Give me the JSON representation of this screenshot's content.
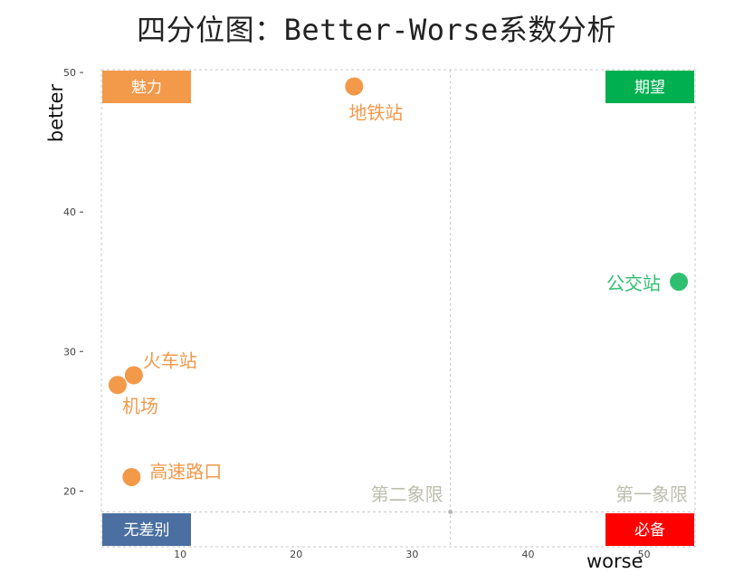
{
  "title": "四分位图：Better-Worse系数分析",
  "xlabel": "worse",
  "ylabel": "better",
  "chart_data": {
    "type": "scatter",
    "title": "四分位图：Better-Worse系数分析",
    "xlabel": "worse",
    "ylabel": "better",
    "xlim": [
      3.2,
      54.4
    ],
    "ylim": [
      16,
      50.2
    ],
    "xticks": [
      10,
      20,
      30,
      40,
      50
    ],
    "yticks": [
      20,
      30,
      40,
      50
    ],
    "grid": false,
    "points": [
      {
        "label": "地铁站",
        "x": 25,
        "y": 49,
        "color": "#F2994A"
      },
      {
        "label": "公交站",
        "x": 53,
        "y": 35,
        "color": "#2FBF71"
      },
      {
        "label": "火车站",
        "x": 6,
        "y": 28.3,
        "color": "#F2994A"
      },
      {
        "label": "机场",
        "x": 4.6,
        "y": 27.6,
        "color": "#F2994A"
      },
      {
        "label": "高速路口",
        "x": 5.8,
        "y": 21,
        "color": "#F2994A"
      }
    ],
    "reference_lines": {
      "x": 33.3,
      "y": 18.5
    },
    "quadrant_boxes": [
      {
        "label": "魅力",
        "position": "top-left",
        "color": "#F2994A"
      },
      {
        "label": "期望",
        "position": "top-right",
        "color": "#00B050"
      },
      {
        "label": "无差别",
        "position": "bottom-left",
        "color": "#4A6FA0"
      },
      {
        "label": "必备",
        "position": "bottom-right",
        "color": "#FF0000"
      }
    ],
    "quadrant_labels": [
      "第二象限",
      "第一象限"
    ]
  }
}
